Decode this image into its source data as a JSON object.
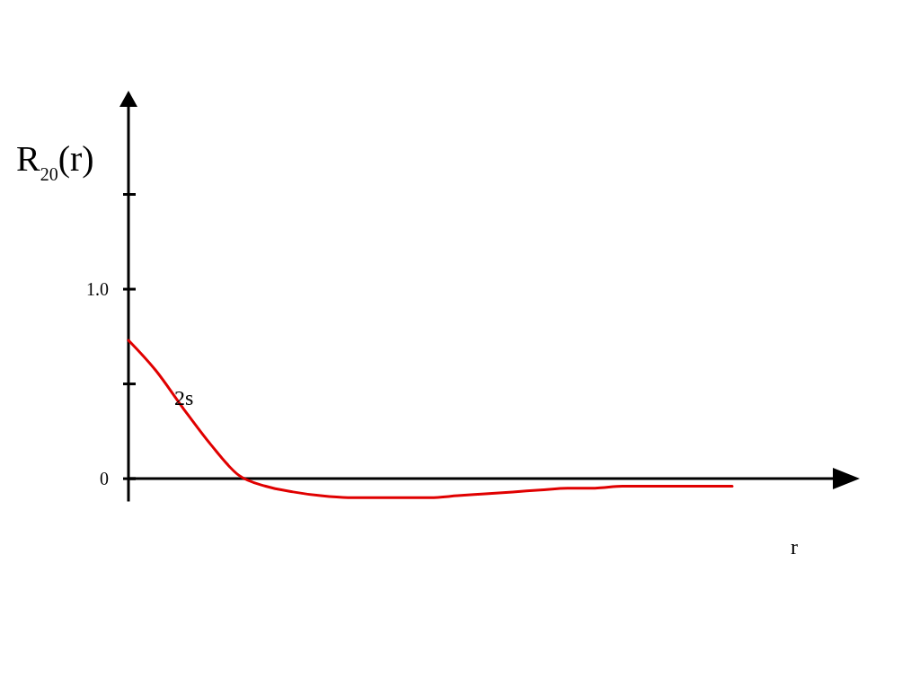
{
  "chart_data": {
    "type": "line",
    "ylabel": "R$_{20}$(r)",
    "xlabel": "r",
    "annotations": [
      "2s"
    ],
    "categories": [
      null,
      null,
      null,
      null,
      null,
      null,
      null,
      null,
      null,
      null,
      null,
      null,
      null,
      null,
      null,
      null,
      null,
      null,
      null,
      null,
      null,
      null,
      null
    ],
    "series": [
      {
        "color": "#e00000",
        "values": [
          0.73,
          0.57,
          0.37,
          0.18,
          0.02,
          -0.04,
          -0.07,
          -0.09,
          -0.1,
          -0.1,
          -0.1,
          -0.1,
          -0.09,
          -0.08,
          -0.07,
          -0.06,
          -0.05,
          -0.05,
          -0.04,
          -0.04,
          -0.04,
          -0.04,
          -0.04
        ]
      }
    ],
    "ylim": [
      -0.12,
      2.0
    ],
    "yticks": [
      {
        "value": 0,
        "label": "0"
      },
      {
        "value": 0.5,
        "label": null
      },
      {
        "value": 1.0,
        "label": "1.0"
      },
      {
        "value": 1.5,
        "label": null
      }
    ],
    "marker": "none",
    "line_style": "solid"
  }
}
